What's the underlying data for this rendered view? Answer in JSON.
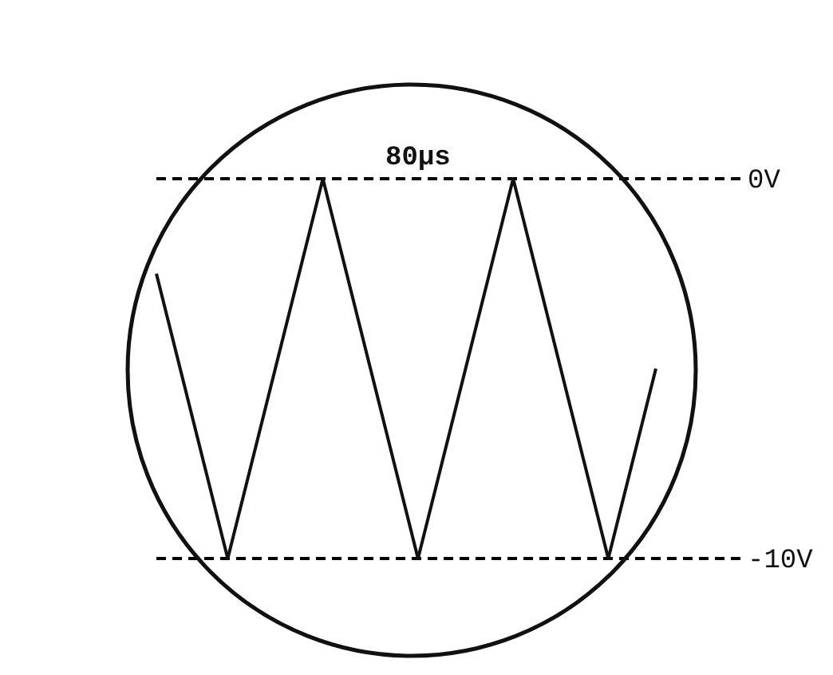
{
  "chart_data": {
    "type": "line",
    "categories": [
      null,
      null,
      null,
      null,
      null,
      null,
      null,
      null,
      null,
      null,
      null,
      null,
      null,
      null,
      null,
      null,
      null,
      null,
      null,
      null,
      null,
      null
    ],
    "series": [
      {
        "color": "#111111",
        "values": [
          -2.5,
          -5,
          -7.5,
          -10,
          -7.5,
          -5,
          -2.5,
          0,
          -2.5,
          -5,
          -7.5,
          -10,
          -7.5,
          -5,
          -2.5,
          0,
          -2.5,
          -5,
          -7.5,
          -10,
          -7.5,
          -5
        ]
      }
    ],
    "ylim": [
      -10,
      0
    ],
    "yticks": [
      {
        "value": 0,
        "label": "0V"
      },
      {
        "value": -10,
        "label": "-10V"
      }
    ],
    "tick_labels": "y",
    "marker": "none",
    "line_style": "solid",
    "ref_lines": [
      {
        "axis": "y",
        "value": 0,
        "line_style": "dashed",
        "color": "#000000"
      },
      {
        "axis": "y",
        "value": -10,
        "line_style": "dashed",
        "color": "#000000"
      }
    ],
    "annotations": [
      "80µs"
    ]
  }
}
